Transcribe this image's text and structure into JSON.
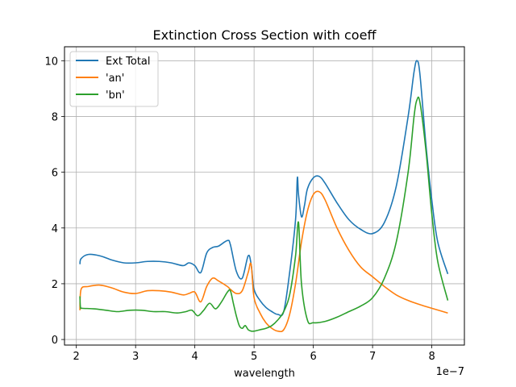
{
  "chart_data": {
    "type": "line",
    "title": "Extinction Cross Section with coeff",
    "xlabel": "wavelength",
    "ylabel": "",
    "x_offset_label": "1e−7",
    "xlim": [
      1.8e-07,
      8.55e-07
    ],
    "ylim": [
      -0.2,
      10.5
    ],
    "xticks": [
      2e-07,
      3e-07,
      4e-07,
      5e-07,
      6e-07,
      7e-07,
      8e-07
    ],
    "xtick_labels": [
      "2",
      "3",
      "4",
      "5",
      "6",
      "7",
      "8"
    ],
    "yticks": [
      0,
      2,
      4,
      6,
      8,
      10
    ],
    "ytick_labels": [
      "0",
      "2",
      "4",
      "6",
      "8",
      "10"
    ],
    "grid": true,
    "legend_position": "top-left",
    "series": [
      {
        "name": "Ext Total",
        "color": "#1f77b4",
        "x": [
          2.06e-07,
          2.08e-07,
          2.2e-07,
          2.4e-07,
          2.6e-07,
          2.8e-07,
          3e-07,
          3.2e-07,
          3.4e-07,
          3.6e-07,
          3.8e-07,
          3.9e-07,
          4e-07,
          4.1e-07,
          4.2e-07,
          4.3e-07,
          4.4e-07,
          4.55e-07,
          4.6e-07,
          4.7e-07,
          4.8e-07,
          4.9e-07,
          4.95e-07,
          5e-07,
          5.1e-07,
          5.2e-07,
          5.3e-07,
          5.4e-07,
          5.5e-07,
          5.6e-07,
          5.7e-07,
          5.73e-07,
          5.75e-07,
          5.8e-07,
          5.85e-07,
          5.9e-07,
          6e-07,
          6.1e-07,
          6.2e-07,
          6.4e-07,
          6.6e-07,
          6.8e-07,
          7e-07,
          7.2e-07,
          7.4e-07,
          7.6e-07,
          7.7e-07,
          7.75e-07,
          7.8e-07,
          7.9e-07,
          8e-07,
          8.1e-07,
          8.27e-07
        ],
        "y": [
          2.7,
          2.9,
          3.05,
          3.0,
          2.85,
          2.75,
          2.75,
          2.8,
          2.8,
          2.75,
          2.65,
          2.75,
          2.65,
          2.4,
          3.1,
          3.3,
          3.35,
          3.55,
          3.4,
          2.45,
          2.2,
          3.0,
          2.7,
          1.8,
          1.4,
          1.15,
          1.0,
          0.9,
          1.0,
          2.4,
          4.3,
          5.8,
          5.2,
          4.4,
          4.8,
          5.4,
          5.8,
          5.85,
          5.6,
          4.9,
          4.3,
          3.95,
          3.8,
          4.2,
          5.5,
          8.0,
          9.6,
          10.0,
          9.5,
          7.0,
          5.0,
          3.5,
          2.35
        ]
      },
      {
        "name": "'an'",
        "color": "#ff7f0e",
        "x": [
          2.06e-07,
          2.08e-07,
          2.2e-07,
          2.4e-07,
          2.6e-07,
          2.8e-07,
          3e-07,
          3.2e-07,
          3.4e-07,
          3.6e-07,
          3.8e-07,
          3.9e-07,
          4e-07,
          4.1e-07,
          4.2e-07,
          4.3e-07,
          4.4e-07,
          4.55e-07,
          4.6e-07,
          4.7e-07,
          4.8e-07,
          4.9e-07,
          4.95e-07,
          5e-07,
          5.1e-07,
          5.2e-07,
          5.3e-07,
          5.4e-07,
          5.5e-07,
          5.6e-07,
          5.7e-07,
          5.8e-07,
          5.9e-07,
          6e-07,
          6.1e-07,
          6.2e-07,
          6.4e-07,
          6.6e-07,
          6.8e-07,
          7e-07,
          7.2e-07,
          7.4e-07,
          7.6e-07,
          7.8e-07,
          8e-07,
          8.27e-07
        ],
        "y": [
          1.05,
          1.8,
          1.9,
          1.95,
          1.85,
          1.7,
          1.65,
          1.75,
          1.75,
          1.7,
          1.6,
          1.65,
          1.7,
          1.35,
          1.9,
          2.2,
          2.1,
          1.9,
          1.8,
          1.65,
          1.75,
          2.4,
          2.7,
          1.5,
          0.95,
          0.6,
          0.4,
          0.3,
          0.35,
          0.9,
          2.0,
          3.5,
          4.6,
          5.2,
          5.3,
          5.0,
          4.0,
          3.2,
          2.6,
          2.25,
          1.9,
          1.6,
          1.4,
          1.25,
          1.12,
          0.95
        ]
      },
      {
        "name": "'bn'",
        "color": "#2ca02c",
        "x": [
          2.06e-07,
          2.07e-07,
          2.1e-07,
          2.3e-07,
          2.5e-07,
          2.7e-07,
          2.9e-07,
          3.1e-07,
          3.3e-07,
          3.5e-07,
          3.7e-07,
          3.85e-07,
          3.95e-07,
          4.05e-07,
          4.15e-07,
          4.25e-07,
          4.35e-07,
          4.45e-07,
          4.55e-07,
          4.6e-07,
          4.65e-07,
          4.7e-07,
          4.75e-07,
          4.8e-07,
          4.85e-07,
          4.9e-07,
          4.95e-07,
          5e-07,
          5.1e-07,
          5.2e-07,
          5.3e-07,
          5.4e-07,
          5.5e-07,
          5.6e-07,
          5.7e-07,
          5.75e-07,
          5.8e-07,
          5.9e-07,
          6e-07,
          6.2e-07,
          6.4e-07,
          6.6e-07,
          6.8e-07,
          7e-07,
          7.2e-07,
          7.4e-07,
          7.6e-07,
          7.7e-07,
          7.75e-07,
          7.8e-07,
          7.9e-07,
          8e-07,
          8.1e-07,
          8.27e-07
        ],
        "y": [
          1.55,
          1.15,
          1.12,
          1.1,
          1.05,
          1.0,
          1.05,
          1.05,
          1.0,
          1.0,
          0.95,
          1.0,
          1.05,
          0.85,
          1.05,
          1.3,
          1.1,
          1.35,
          1.7,
          1.75,
          1.3,
          0.85,
          0.5,
          0.4,
          0.5,
          0.35,
          0.3,
          0.3,
          0.35,
          0.4,
          0.5,
          0.7,
          1.0,
          1.6,
          3.0,
          4.2,
          2.0,
          0.7,
          0.6,
          0.65,
          0.8,
          1.0,
          1.2,
          1.5,
          2.2,
          3.5,
          6.0,
          8.0,
          8.6,
          8.5,
          6.8,
          4.5,
          2.8,
          1.4
        ]
      }
    ]
  }
}
